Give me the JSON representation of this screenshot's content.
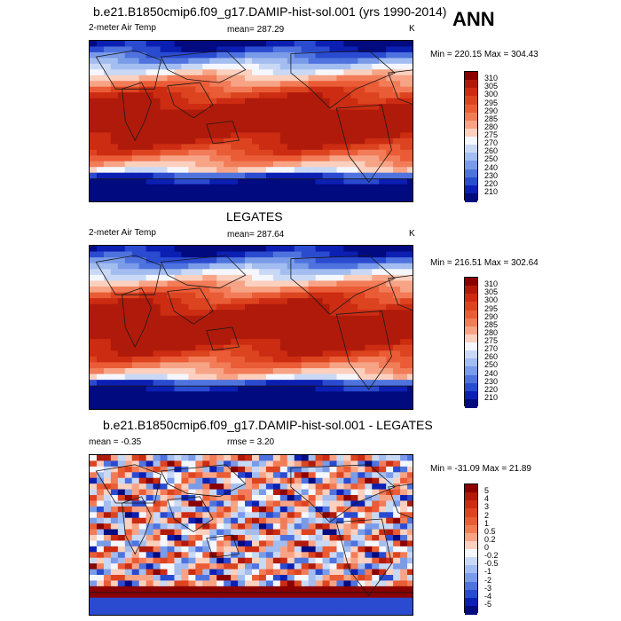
{
  "season": "ANN",
  "panels": [
    {
      "title": "b.e21.B1850cmip6.f09_g17.DAMIP-hist-sol.001 (yrs 1990-2014)",
      "left": "2-meter Air Temp",
      "center": "mean= 287.29",
      "right": "K",
      "minmax": "Min = 220.15 Max = 304.43",
      "levels": [
        "310",
        "305",
        "300",
        "295",
        "290",
        "285",
        "280",
        "275",
        "270",
        "260",
        "250",
        "240",
        "230",
        "220",
        "210"
      ]
    },
    {
      "title": "LEGATES",
      "left": "2-meter Air Temp",
      "center": "mean= 287.64",
      "right": "K",
      "minmax": "Min = 216.51 Max = 302.64",
      "levels": [
        "310",
        "305",
        "300",
        "295",
        "290",
        "285",
        "280",
        "275",
        "270",
        "260",
        "250",
        "240",
        "230",
        "220",
        "210"
      ]
    },
    {
      "title": "b.e21.B1850cmip6.f09_g17.DAMIP-hist-sol.001 - LEGATES",
      "left": "mean =  -0.35",
      "center": "rmse =   3.20",
      "right": "",
      "minmax": "Min = -31.09 Max =  21.89",
      "levels": [
        "5",
        "4",
        "3",
        "2",
        "1",
        "0.5",
        "0.2",
        "0",
        "-0.2",
        "-0.5",
        "-1",
        "-2",
        "-3",
        "-4",
        "-5"
      ]
    }
  ],
  "colors": {
    "scale": [
      "#8a0000",
      "#b01a0a",
      "#cc2c12",
      "#dc4420",
      "#ea5c36",
      "#f27c58",
      "#f7a486",
      "#fbd0be",
      "#f5f7ff",
      "#c9d9f5",
      "#a3bdf0",
      "#7a9be8",
      "#4f73de",
      "#2a4bd0",
      "#0c1fb3",
      "#020a80"
    ],
    "land": "#d9472a",
    "coast": "#1a1a1a"
  }
}
